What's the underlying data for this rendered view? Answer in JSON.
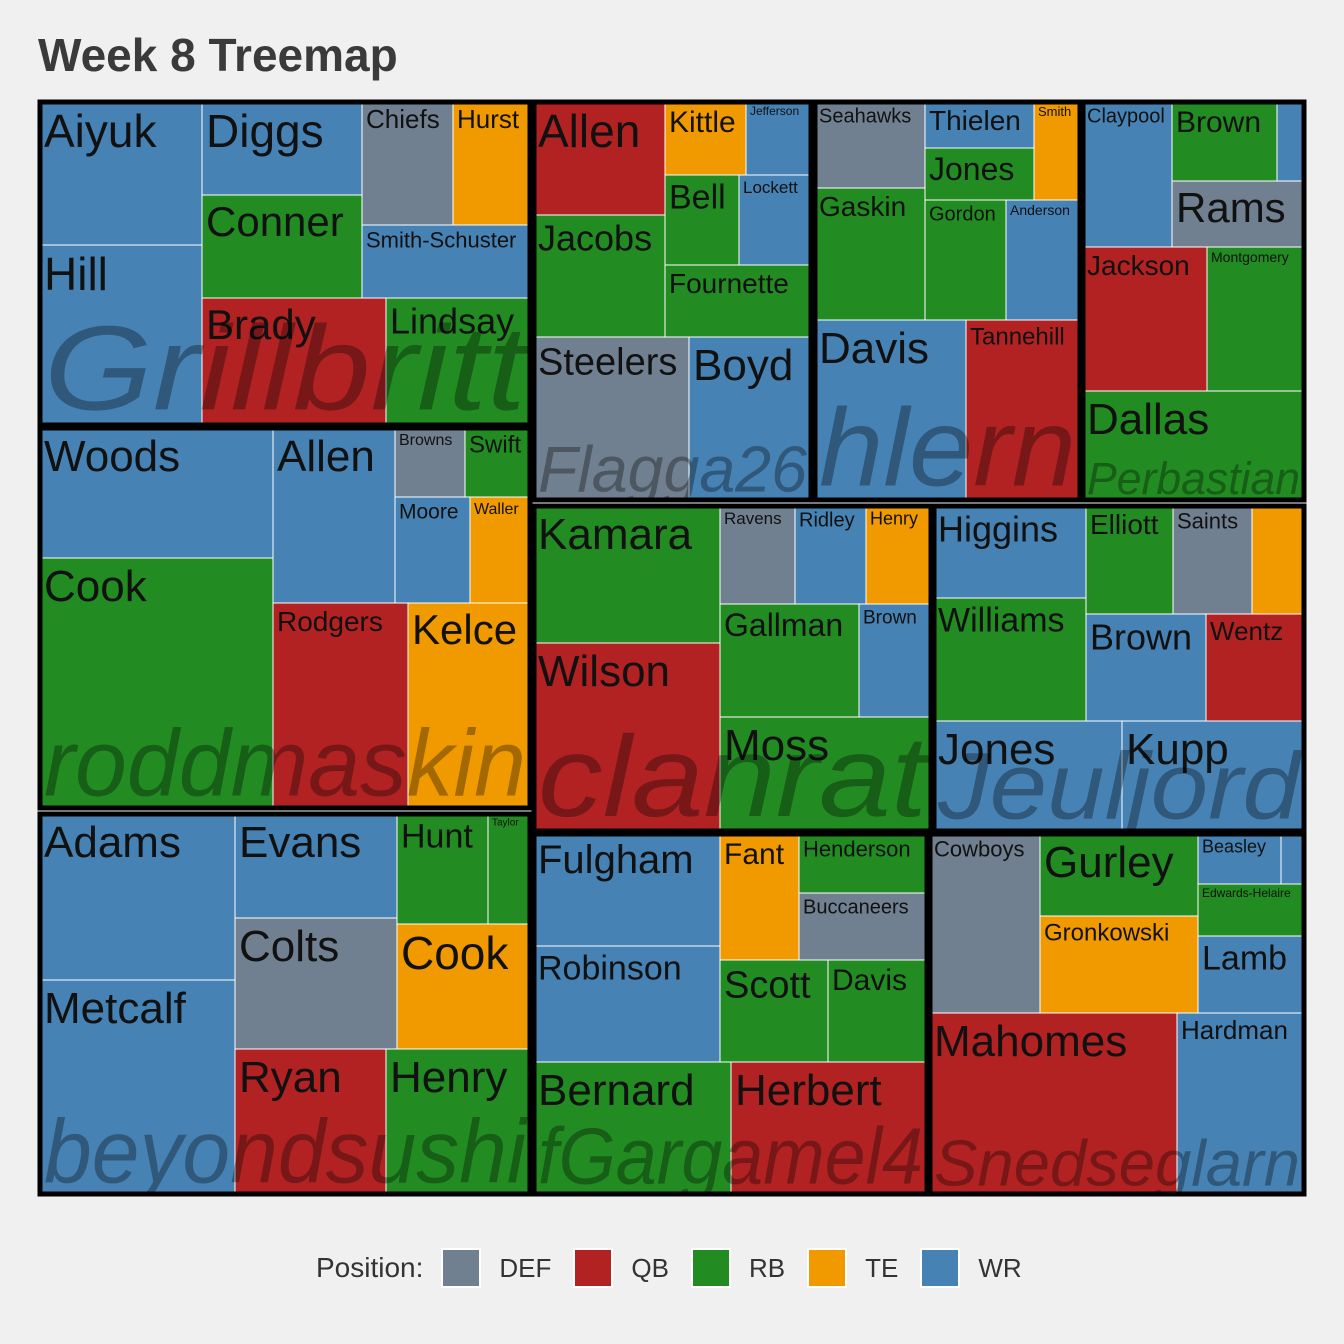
{
  "title": "Week 8 Treemap",
  "legend": {
    "title": "Position:",
    "items": [
      {
        "key": "DEF",
        "label": "DEF",
        "color": "#708090"
      },
      {
        "key": "QB",
        "label": "QB",
        "color": "#b22222"
      },
      {
        "key": "RB",
        "label": "RB",
        "color": "#228b22"
      },
      {
        "key": "TE",
        "label": "TE",
        "color": "#f09a00"
      },
      {
        "key": "WR",
        "label": "WR",
        "color": "#4682b4"
      }
    ]
  },
  "chart_data": {
    "type": "treemap",
    "hierarchy": "team > player",
    "color_by": "position",
    "teams": [
      {
        "name": "Grillbritt",
        "players": [
          {
            "name": "Aiyuk",
            "pos": "WR"
          },
          {
            "name": "Hill",
            "pos": "WR"
          },
          {
            "name": "Diggs",
            "pos": "WR"
          },
          {
            "name": "Chiefs",
            "pos": "DEF"
          },
          {
            "name": "Hurst",
            "pos": "TE"
          },
          {
            "name": "Conner",
            "pos": "RB"
          },
          {
            "name": "Smith-Schuster",
            "pos": "WR"
          },
          {
            "name": "Brady",
            "pos": "QB"
          },
          {
            "name": "Lindsay",
            "pos": "RB"
          }
        ]
      },
      {
        "name": "roddmaskin",
        "players": [
          {
            "name": "Woods",
            "pos": "WR"
          },
          {
            "name": "Cook",
            "pos": "RB"
          },
          {
            "name": "Allen",
            "pos": "WR"
          },
          {
            "name": "Browns",
            "pos": "DEF"
          },
          {
            "name": "Swift",
            "pos": "RB"
          },
          {
            "name": "Moore",
            "pos": "WR"
          },
          {
            "name": "Waller",
            "pos": "TE"
          },
          {
            "name": "Rodgers",
            "pos": "QB"
          },
          {
            "name": "Kelce",
            "pos": "TE"
          }
        ]
      },
      {
        "name": "beyondsushi",
        "players": [
          {
            "name": "Adams",
            "pos": "WR"
          },
          {
            "name": "Metcalf",
            "pos": "WR"
          },
          {
            "name": "Evans",
            "pos": "WR"
          },
          {
            "name": "Hunt",
            "pos": "RB"
          },
          {
            "name": "Taylor",
            "pos": "RB"
          },
          {
            "name": "Colts",
            "pos": "DEF"
          },
          {
            "name": "Cook",
            "pos": "TE"
          },
          {
            "name": "Ryan",
            "pos": "QB"
          },
          {
            "name": "Henry",
            "pos": "RB"
          }
        ]
      },
      {
        "name": "Flagga26",
        "players": [
          {
            "name": "Allen",
            "pos": "QB"
          },
          {
            "name": "Kittle",
            "pos": "TE"
          },
          {
            "name": "Jefferson",
            "pos": "WR"
          },
          {
            "name": "Jacobs",
            "pos": "RB"
          },
          {
            "name": "Bell",
            "pos": "RB"
          },
          {
            "name": "Lockett",
            "pos": "WR"
          },
          {
            "name": "Fournette",
            "pos": "RB"
          },
          {
            "name": "Steelers",
            "pos": "DEF"
          },
          {
            "name": "Boyd",
            "pos": "WR"
          }
        ]
      },
      {
        "name": "hlern",
        "players": [
          {
            "name": "Seahawks",
            "pos": "DEF"
          },
          {
            "name": "Thielen",
            "pos": "WR"
          },
          {
            "name": "Smith",
            "pos": "TE"
          },
          {
            "name": "Jones",
            "pos": "RB"
          },
          {
            "name": "Gaskin",
            "pos": "RB"
          },
          {
            "name": "Gordon",
            "pos": "RB"
          },
          {
            "name": "Anderson",
            "pos": "WR"
          },
          {
            "name": "Davis",
            "pos": "WR"
          },
          {
            "name": "Tannehill",
            "pos": "QB"
          }
        ]
      },
      {
        "name": "Perbastian",
        "players": [
          {
            "name": "Claypool",
            "pos": "WR"
          },
          {
            "name": "Brown",
            "pos": "RB"
          },
          {
            "name": "",
            "pos": "WR"
          },
          {
            "name": "Rams",
            "pos": "DEF"
          },
          {
            "name": "Jackson",
            "pos": "QB"
          },
          {
            "name": "Montgomery",
            "pos": "RB"
          },
          {
            "name": "Dallas",
            "pos": "RB"
          }
        ]
      },
      {
        "name": "clanrat",
        "players": [
          {
            "name": "Kamara",
            "pos": "RB"
          },
          {
            "name": "Wilson",
            "pos": "QB"
          },
          {
            "name": "Ravens",
            "pos": "DEF"
          },
          {
            "name": "Ridley",
            "pos": "WR"
          },
          {
            "name": "Henry",
            "pos": "TE"
          },
          {
            "name": "Gallman",
            "pos": "RB"
          },
          {
            "name": "Brown",
            "pos": "WR"
          },
          {
            "name": "Moss",
            "pos": "RB"
          }
        ]
      },
      {
        "name": "Jeuljord",
        "players": [
          {
            "name": "Higgins",
            "pos": "WR"
          },
          {
            "name": "Williams",
            "pos": "RB"
          },
          {
            "name": "Elliott",
            "pos": "RB"
          },
          {
            "name": "Saints",
            "pos": "DEF"
          },
          {
            "name": "",
            "pos": "TE"
          },
          {
            "name": "Brown",
            "pos": "WR"
          },
          {
            "name": "Wentz",
            "pos": "QB"
          },
          {
            "name": "Jones",
            "pos": "WR"
          },
          {
            "name": "Kupp",
            "pos": "WR"
          }
        ]
      },
      {
        "name": "fGargamel4",
        "players": [
          {
            "name": "Fulgham",
            "pos": "WR"
          },
          {
            "name": "Robinson",
            "pos": "WR"
          },
          {
            "name": "Fant",
            "pos": "TE"
          },
          {
            "name": "Henderson",
            "pos": "RB"
          },
          {
            "name": "Buccaneers",
            "pos": "DEF"
          },
          {
            "name": "Scott",
            "pos": "RB"
          },
          {
            "name": "Davis",
            "pos": "RB"
          },
          {
            "name": "Bernard",
            "pos": "RB"
          },
          {
            "name": "Herbert",
            "pos": "QB"
          }
        ]
      },
      {
        "name": "Snedseglarn",
        "players": [
          {
            "name": "Cowboys",
            "pos": "DEF"
          },
          {
            "name": "Gurley",
            "pos": "RB"
          },
          {
            "name": "Beasley",
            "pos": "WR"
          },
          {
            "name": "",
            "pos": "WR"
          },
          {
            "name": "Edwards-Helaire",
            "pos": "RB"
          },
          {
            "name": "Gronkowski",
            "pos": "TE"
          },
          {
            "name": "Lamb",
            "pos": "WR"
          },
          {
            "name": "Mahomes",
            "pos": "QB"
          },
          {
            "name": "Hardman",
            "pos": "WR"
          }
        ]
      }
    ]
  }
}
